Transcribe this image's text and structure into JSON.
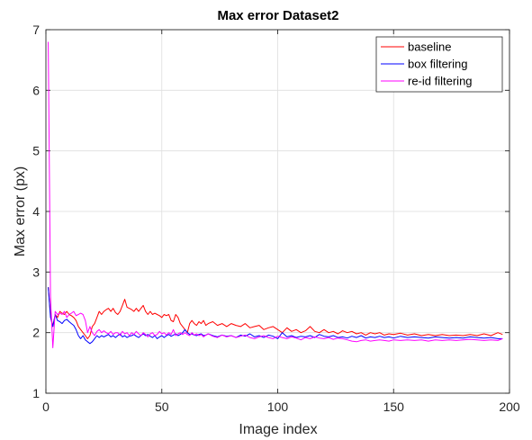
{
  "chart_data": {
    "type": "line",
    "title": "Max error Dataset2",
    "xlabel": "Image index",
    "ylabel": "Max error (px)",
    "xlim": [
      0,
      200
    ],
    "ylim": [
      1,
      7
    ],
    "xticks": [
      0,
      50,
      100,
      150,
      200
    ],
    "yticks": [
      1,
      2,
      3,
      4,
      5,
      6,
      7
    ],
    "grid": true,
    "legend_position": "top-right",
    "series": [
      {
        "name": "baseline",
        "color": "#ff0000",
        "x": [
          1,
          2,
          3,
          4,
          5,
          6,
          7,
          8,
          9,
          10,
          11,
          12,
          13,
          14,
          15,
          16,
          17,
          18,
          19,
          20,
          21,
          22,
          23,
          24,
          25,
          26,
          27,
          28,
          29,
          30,
          31,
          32,
          33,
          34,
          35,
          36,
          37,
          38,
          39,
          40,
          41,
          42,
          43,
          44,
          45,
          46,
          47,
          48,
          49,
          50,
          51,
          52,
          53,
          54,
          55,
          56,
          57,
          58,
          59,
          60,
          61,
          62,
          63,
          64,
          65,
          66,
          67,
          68,
          69,
          70,
          72,
          74,
          76,
          78,
          80,
          82,
          84,
          86,
          88,
          90,
          92,
          94,
          96,
          98,
          100,
          102,
          104,
          106,
          108,
          110,
          112,
          114,
          116,
          118,
          120,
          122,
          124,
          126,
          128,
          130,
          132,
          134,
          136,
          138,
          140,
          142,
          144,
          146,
          148,
          150,
          153,
          156,
          159,
          162,
          165,
          168,
          171,
          174,
          177,
          180,
          183,
          186,
          189,
          192,
          195,
          197
        ],
        "y": [
          2.75,
          2.3,
          2.1,
          2.3,
          2.25,
          2.35,
          2.32,
          2.3,
          2.35,
          2.3,
          2.28,
          2.25,
          2.2,
          2.1,
          2.05,
          2.0,
          1.95,
          1.9,
          1.95,
          2.1,
          2.15,
          2.25,
          2.35,
          2.3,
          2.35,
          2.38,
          2.4,
          2.35,
          2.4,
          2.33,
          2.3,
          2.35,
          2.45,
          2.55,
          2.42,
          2.4,
          2.38,
          2.35,
          2.4,
          2.35,
          2.4,
          2.45,
          2.35,
          2.3,
          2.35,
          2.3,
          2.32,
          2.3,
          2.28,
          2.25,
          2.3,
          2.28,
          2.3,
          2.2,
          2.18,
          2.3,
          2.25,
          2.15,
          2.1,
          2.05,
          2.0,
          2.15,
          2.2,
          2.15,
          2.12,
          2.18,
          2.15,
          2.2,
          2.12,
          2.15,
          2.18,
          2.12,
          2.15,
          2.1,
          2.15,
          2.12,
          2.1,
          2.15,
          2.08,
          2.1,
          2.12,
          2.05,
          2.08,
          2.1,
          2.05,
          2.0,
          2.08,
          2.02,
          2.05,
          2.0,
          2.03,
          2.1,
          2.02,
          2.0,
          2.05,
          2.0,
          2.02,
          1.98,
          2.03,
          2.0,
          2.02,
          1.98,
          2.0,
          1.96,
          2.0,
          1.98,
          2.0,
          1.96,
          1.98,
          1.97,
          1.99,
          1.96,
          1.98,
          1.95,
          1.97,
          1.95,
          1.97,
          1.95,
          1.96,
          1.95,
          1.97,
          1.95,
          1.98,
          1.95,
          2.0,
          1.97
        ]
      },
      {
        "name": "box filtering",
        "color": "#0000ff",
        "x": [
          1,
          2,
          3,
          4,
          5,
          6,
          7,
          8,
          9,
          10,
          11,
          12,
          13,
          14,
          15,
          16,
          17,
          18,
          19,
          20,
          21,
          22,
          23,
          24,
          25,
          26,
          27,
          28,
          29,
          30,
          31,
          32,
          33,
          34,
          35,
          36,
          37,
          38,
          39,
          40,
          41,
          42,
          43,
          44,
          45,
          46,
          47,
          48,
          49,
          50,
          51,
          52,
          53,
          54,
          55,
          56,
          57,
          58,
          59,
          60,
          61,
          62,
          63,
          64,
          65,
          66,
          67,
          68,
          69,
          70,
          72,
          74,
          76,
          78,
          80,
          82,
          84,
          86,
          88,
          90,
          92,
          94,
          96,
          98,
          100,
          102,
          104,
          106,
          108,
          110,
          112,
          114,
          116,
          118,
          120,
          122,
          124,
          126,
          128,
          130,
          132,
          134,
          136,
          138,
          140,
          142,
          144,
          146,
          148,
          150,
          153,
          156,
          159,
          162,
          165,
          168,
          171,
          174,
          177,
          180,
          183,
          186,
          189,
          192,
          195,
          197
        ],
        "y": [
          2.75,
          2.25,
          2.1,
          2.3,
          2.2,
          2.18,
          2.15,
          2.2,
          2.22,
          2.18,
          2.15,
          2.12,
          2.05,
          1.95,
          1.9,
          1.95,
          1.88,
          1.85,
          1.82,
          1.85,
          1.9,
          1.95,
          1.92,
          1.95,
          1.93,
          1.95,
          1.97,
          1.93,
          1.95,
          1.92,
          1.95,
          1.98,
          1.93,
          1.95,
          1.92,
          1.94,
          1.95,
          1.97,
          1.94,
          1.92,
          1.95,
          1.98,
          1.95,
          1.97,
          1.94,
          1.92,
          1.95,
          1.9,
          1.93,
          1.95,
          1.92,
          1.95,
          1.97,
          1.94,
          1.96,
          1.98,
          1.95,
          1.97,
          2.0,
          2.05,
          2.0,
          1.97,
          1.98,
          1.96,
          1.95,
          1.97,
          1.98,
          1.95,
          1.96,
          1.98,
          1.95,
          1.93,
          1.96,
          1.94,
          1.95,
          1.92,
          1.96,
          1.94,
          1.98,
          1.93,
          1.95,
          1.92,
          1.96,
          1.94,
          1.9,
          2.0,
          1.93,
          1.95,
          1.92,
          1.94,
          1.93,
          1.95,
          1.92,
          1.97,
          1.94,
          1.93,
          1.95,
          1.92,
          1.93,
          1.91,
          1.94,
          1.92,
          1.95,
          1.91,
          1.93,
          1.92,
          1.94,
          1.92,
          1.93,
          1.91,
          1.94,
          1.92,
          1.93,
          1.92,
          1.91,
          1.93,
          1.92,
          1.91,
          1.92,
          1.91,
          1.93,
          1.92,
          1.91,
          1.92,
          1.9,
          1.9
        ]
      },
      {
        "name": "re-id filtering",
        "color": "#ff00ff",
        "x": [
          1,
          2,
          3,
          4,
          5,
          6,
          7,
          8,
          9,
          10,
          11,
          12,
          13,
          14,
          15,
          16,
          17,
          18,
          19,
          20,
          21,
          22,
          23,
          24,
          25,
          26,
          27,
          28,
          29,
          30,
          31,
          32,
          33,
          34,
          35,
          36,
          37,
          38,
          39,
          40,
          41,
          42,
          43,
          44,
          45,
          46,
          47,
          48,
          49,
          50,
          51,
          52,
          53,
          54,
          55,
          56,
          57,
          58,
          59,
          60,
          61,
          62,
          63,
          64,
          65,
          66,
          67,
          68,
          69,
          70,
          72,
          74,
          76,
          78,
          80,
          82,
          84,
          86,
          88,
          90,
          92,
          94,
          96,
          98,
          100,
          102,
          104,
          106,
          108,
          110,
          112,
          114,
          116,
          118,
          120,
          122,
          124,
          126,
          128,
          130,
          132,
          134,
          136,
          138,
          140,
          142,
          144,
          146,
          148,
          150,
          153,
          156,
          159,
          162,
          165,
          168,
          171,
          174,
          177,
          180,
          183,
          186,
          189,
          192,
          195,
          197
        ],
        "y": [
          6.8,
          2.6,
          1.75,
          2.35,
          2.3,
          2.32,
          2.3,
          2.35,
          2.25,
          2.3,
          2.32,
          2.35,
          2.28,
          2.3,
          2.32,
          2.3,
          2.2,
          2.0,
          2.1,
          2.0,
          1.95,
          2.02,
          2.05,
          2.0,
          2.03,
          2.0,
          1.98,
          2.02,
          1.97,
          2.0,
          2.0,
          1.95,
          2.02,
          1.98,
          2.0,
          1.95,
          2.0,
          1.97,
          2.02,
          1.98,
          1.95,
          2.0,
          1.97,
          1.93,
          1.98,
          2.0,
          1.95,
          1.97,
          2.02,
          1.98,
          2.0,
          1.96,
          2.0,
          1.97,
          2.05,
          1.95,
          1.98,
          2.0,
          1.97,
          2.0,
          1.97,
          1.95,
          2.0,
          1.96,
          1.98,
          1.95,
          1.97,
          1.93,
          1.96,
          1.98,
          1.94,
          1.92,
          1.96,
          1.93,
          1.95,
          1.92,
          1.94,
          1.96,
          1.92,
          1.9,
          1.93,
          1.95,
          1.92,
          1.9,
          1.94,
          1.92,
          1.9,
          1.93,
          1.91,
          1.88,
          1.92,
          1.9,
          1.93,
          1.91,
          1.9,
          1.92,
          1.89,
          1.91,
          1.9,
          1.88,
          1.86,
          1.85,
          1.87,
          1.88,
          1.86,
          1.87,
          1.88,
          1.87,
          1.86,
          1.88,
          1.87,
          1.88,
          1.87,
          1.88,
          1.86,
          1.88,
          1.87,
          1.88,
          1.87,
          1.88,
          1.89,
          1.88,
          1.87,
          1.88,
          1.87,
          1.9
        ]
      }
    ]
  }
}
